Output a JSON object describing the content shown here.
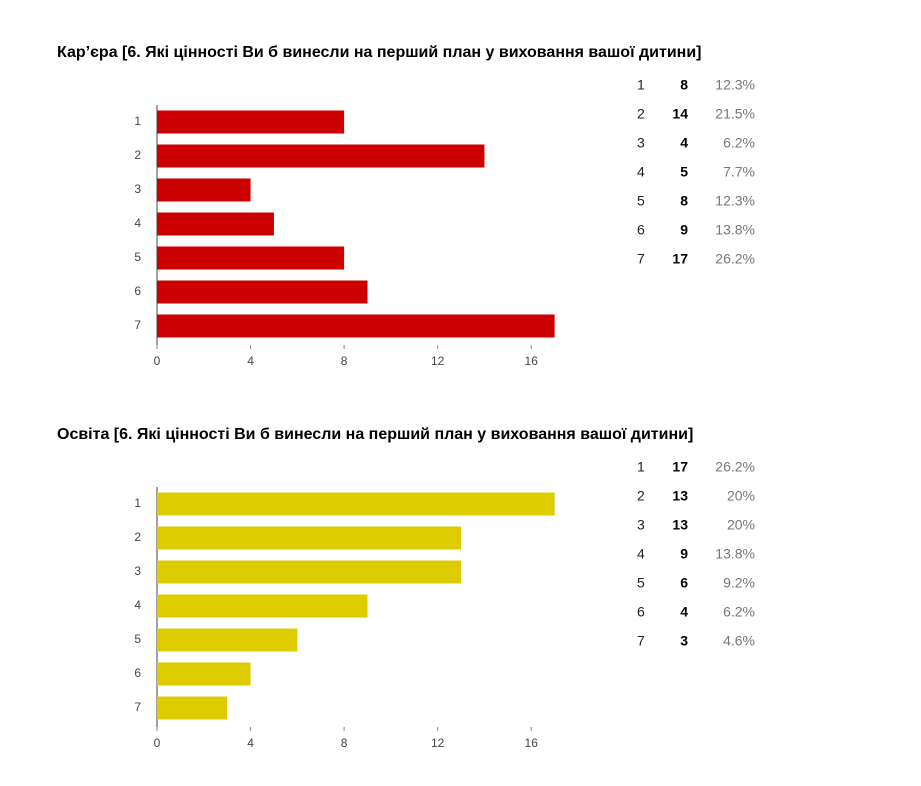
{
  "chart_data": [
    {
      "type": "bar",
      "title": "Кар’єра [6. Які цінності Ви б винесли на перший план у виховання вашої дитини]",
      "categories": [
        "1",
        "2",
        "3",
        "4",
        "5",
        "6",
        "7"
      ],
      "values": [
        8,
        14,
        4,
        5,
        8,
        9,
        17
      ],
      "value_labels": [
        "12.3%",
        "21.5%",
        "6.2%",
        "7.7%",
        "12.3%",
        "13.8%",
        "26.2%"
      ],
      "color": "#cc0000",
      "xlim": [
        0,
        18
      ],
      "xticks": [
        0,
        4,
        8,
        12,
        16
      ]
    },
    {
      "type": "bar",
      "title": "Освіта [6. Які цінності Ви б винесли на перший план у виховання вашої дитини]",
      "categories": [
        "1",
        "2",
        "3",
        "4",
        "5",
        "6",
        "7"
      ],
      "values": [
        17,
        13,
        13,
        9,
        6,
        4,
        3
      ],
      "value_labels": [
        "26.2%",
        "20%",
        "20%",
        "13.8%",
        "9.2%",
        "6.2%",
        "4.6%"
      ],
      "color": "#ddcc00",
      "xlim": [
        0,
        18
      ],
      "xticks": [
        0,
        4,
        8,
        12,
        16
      ]
    }
  ]
}
